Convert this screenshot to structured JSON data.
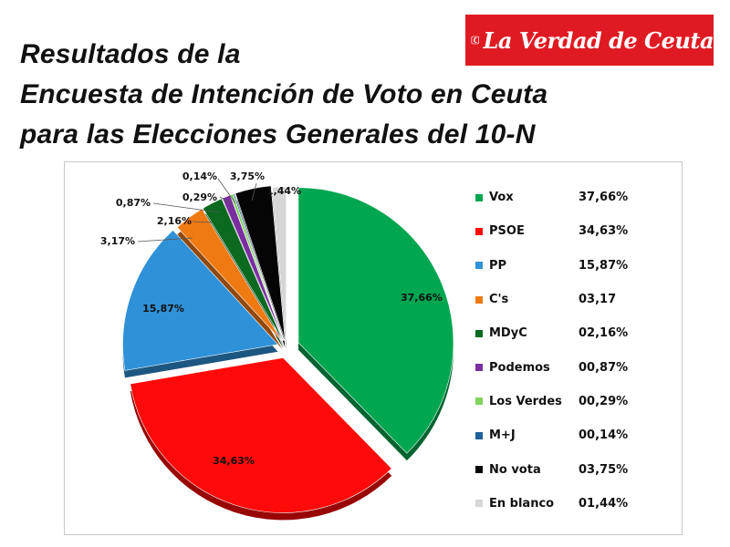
{
  "title": {
    "line1": "Resultados de la",
    "line2": "Encuesta de Intención de Voto en Ceuta",
    "line3": "para las Elecciones Generales del 10-N"
  },
  "logo": {
    "text": "La Verdad de Ceuta",
    "color": "#e01a22"
  },
  "chart_data": {
    "type": "pie",
    "title": "",
    "series": [
      {
        "name": "Vox",
        "value": 37.66,
        "legend_value": "37,66%",
        "slice_label": "37,66%",
        "color": "#00a650"
      },
      {
        "name": "PSOE",
        "value": 34.63,
        "legend_value": "34,63%",
        "slice_label": "34,63%",
        "color": "#ff0a0a"
      },
      {
        "name": "PP",
        "value": 15.87,
        "legend_value": "15,87%",
        "slice_label": "15,87%",
        "color": "#2f91d8"
      },
      {
        "name": "C's",
        "value": 3.17,
        "legend_value": "03,17",
        "slice_label": "3,17%",
        "color": "#f07a12"
      },
      {
        "name": "MDyC",
        "value": 2.16,
        "legend_value": "02,16%",
        "slice_label": "2,16%",
        "color": "#0b6a1f"
      },
      {
        "name": "Podemos",
        "value": 0.87,
        "legend_value": "00,87%",
        "slice_label": "0,87%",
        "color": "#7a2ea0"
      },
      {
        "name": "Los Verdes",
        "value": 0.29,
        "legend_value": "00,29%",
        "slice_label": "0,29%",
        "color": "#7fd35a"
      },
      {
        "name": "M+J",
        "value": 0.14,
        "legend_value": "00,14%",
        "slice_label": "0,14%",
        "color": "#1f5f9a"
      },
      {
        "name": "No vota",
        "value": 3.75,
        "legend_value": "03,75%",
        "slice_label": "3,75%",
        "color": "#050505"
      },
      {
        "name": "En blanco",
        "value": 1.44,
        "legend_value": "01,44%",
        "slice_label": "1,44%",
        "color": "#d6d6d6"
      }
    ],
    "legend_position": "right"
  }
}
